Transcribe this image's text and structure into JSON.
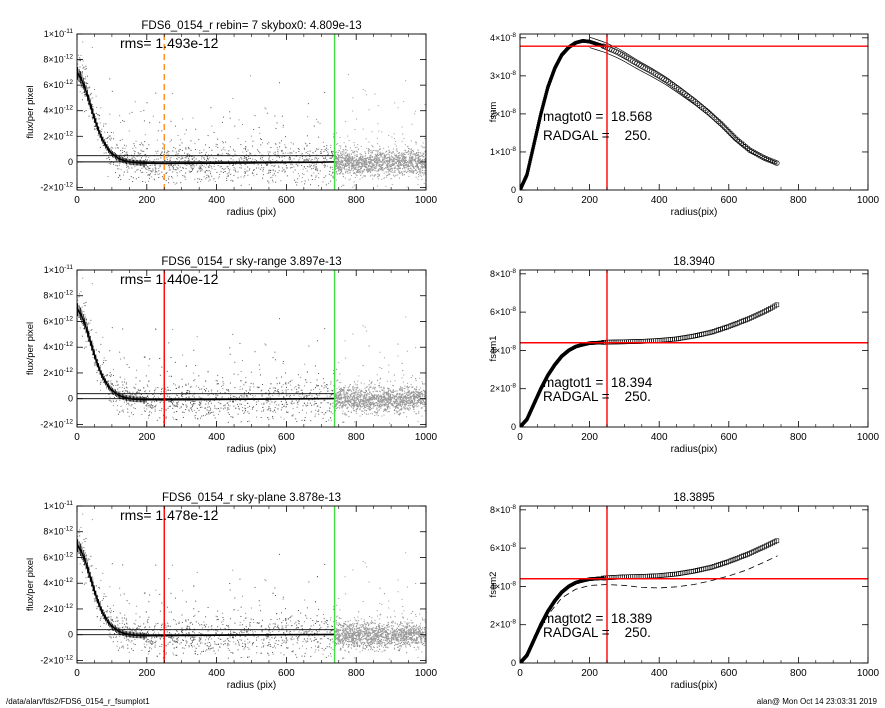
{
  "footer": {
    "left": "/data/alan/fds2/FDS6_0154_r_fsumplot1",
    "right": "alan@  Mon Oct 14 23:03:31 2019"
  },
  "colors": {
    "red": "#ff0000",
    "green": "#44dd44",
    "orange": "#ff8c1a",
    "scatter_grey": "#999999",
    "profile": "#000000"
  },
  "chart_data": [
    {
      "panel": "profile-1",
      "type": "scatter",
      "title": "FDS6_0154_r rebin= 7    skybox0:  4.809e-13",
      "annotation": "rms= 1.493e-12",
      "xlabel": "radius (pix)",
      "ylabel": "flux/per pixel",
      "xlim": [
        0,
        1000
      ],
      "ylim": [
        -2.2e-12,
        1e-11
      ],
      "xticks": [
        "0",
        "200",
        "400",
        "600",
        "800",
        "1000"
      ],
      "yticks": [
        {
          "value": -2e-12,
          "label": "-2×10",
          "exp": "-12"
        },
        {
          "value": 0,
          "label": "0",
          "exp": ""
        },
        {
          "value": 2e-12,
          "label": "2×10",
          "exp": "-12"
        },
        {
          "value": 4e-12,
          "label": "4×10",
          "exp": "-12"
        },
        {
          "value": 6e-12,
          "label": "6×10",
          "exp": "-12"
        },
        {
          "value": 8e-12,
          "label": "8×10",
          "exp": "-12"
        },
        {
          "value": 1e-11,
          "label": "1×10",
          "exp": "-11"
        }
      ],
      "vlines": [
        {
          "x": 250,
          "color": "orange",
          "dashed": true
        },
        {
          "x": 738,
          "color": "green",
          "dashed": false
        }
      ],
      "hlines": [
        4.809e-13,
        0
      ],
      "profile": {
        "x": [
          0,
          10,
          20,
          30,
          40,
          50,
          60,
          70,
          80,
          90,
          100,
          120,
          140,
          160,
          180,
          200,
          250,
          300,
          400,
          500,
          600,
          700,
          738
        ],
        "y": [
          7e-12,
          6.6e-12,
          6e-12,
          5.2e-12,
          4.3e-12,
          3.4e-12,
          2.6e-12,
          1.9e-12,
          1.4e-12,
          9.5e-13,
          6.5e-13,
          2.5e-13,
          6e-14,
          -4e-14,
          -8e-14,
          -1e-13,
          -1.2e-13,
          -1.1e-13,
          -1e-13,
          -8e-14,
          -5e-14,
          -3e-14,
          0
        ]
      }
    },
    {
      "panel": "fsum-1",
      "type": "line",
      "title": "",
      "xlabel": "radius(pix)",
      "ylabel": "fsum",
      "xlim": [
        0,
        1000
      ],
      "ylim": [
        0,
        4.1e-08
      ],
      "xticks": [
        "0",
        "200",
        "400",
        "600",
        "800",
        "1000"
      ],
      "yticks": [
        {
          "value": 0,
          "label": "0",
          "exp": ""
        },
        {
          "value": 1e-08,
          "label": "1×10",
          "exp": "-8"
        },
        {
          "value": 2e-08,
          "label": "2×10",
          "exp": "-8"
        },
        {
          "value": 3e-08,
          "label": "3×10",
          "exp": "-8"
        },
        {
          "value": 4e-08,
          "label": "4×10",
          "exp": "-8"
        }
      ],
      "annotations": [
        "magtot0 =  18.568",
        "RADGAL =    250."
      ],
      "vline_x": 250,
      "hline_y": 3.78e-08,
      "curve": {
        "x": [
          0,
          20,
          40,
          60,
          80,
          100,
          120,
          140,
          160,
          180,
          200,
          220,
          240,
          260,
          280,
          300,
          340,
          380,
          420,
          460,
          500,
          540,
          580,
          620,
          660,
          700,
          740
        ],
        "y": [
          0,
          4e-09,
          1.2e-08,
          2e-08,
          2.7e-08,
          3.2e-08,
          3.55e-08,
          3.75e-08,
          3.87e-08,
          3.92e-08,
          3.9e-08,
          3.84e-08,
          3.78e-08,
          3.7e-08,
          3.62e-08,
          3.52e-08,
          3.3e-08,
          3.1e-08,
          2.88e-08,
          2.62e-08,
          2.35e-08,
          2.05e-08,
          1.72e-08,
          1.35e-08,
          1.05e-08,
          8.5e-09,
          7e-09
        ]
      }
    },
    {
      "panel": "profile-2",
      "type": "scatter",
      "title": "FDS6_0154_r sky-range  3.897e-13",
      "annotation": "rms= 1.440e-12",
      "xlabel": "radius (pix)",
      "ylabel": "flux/per pixel",
      "xlim": [
        0,
        1000
      ],
      "ylim": [
        -2.2e-12,
        1e-11
      ],
      "xticks": [
        "0",
        "200",
        "400",
        "600",
        "800",
        "1000"
      ],
      "yticks": [
        {
          "value": -2e-12,
          "label": "-2×10",
          "exp": "-12"
        },
        {
          "value": 0,
          "label": "0",
          "exp": ""
        },
        {
          "value": 2e-12,
          "label": "2×10",
          "exp": "-12"
        },
        {
          "value": 4e-12,
          "label": "4×10",
          "exp": "-12"
        },
        {
          "value": 6e-12,
          "label": "6×10",
          "exp": "-12"
        },
        {
          "value": 8e-12,
          "label": "8×10",
          "exp": "-12"
        },
        {
          "value": 1e-11,
          "label": "1×10",
          "exp": "-11"
        }
      ],
      "vlines": [
        {
          "x": 250,
          "color": "red",
          "dashed": false
        },
        {
          "x": 738,
          "color": "green",
          "dashed": false
        }
      ],
      "hlines": [
        3.897e-13,
        0
      ],
      "profile": {
        "x": [
          0,
          10,
          20,
          30,
          40,
          50,
          60,
          70,
          80,
          90,
          100,
          120,
          140,
          160,
          180,
          200,
          250,
          300,
          400,
          500,
          600,
          700,
          738
        ],
        "y": [
          7e-12,
          6.6e-12,
          6e-12,
          5.2e-12,
          4.3e-12,
          3.4e-12,
          2.6e-12,
          1.9e-12,
          1.4e-12,
          9.5e-13,
          6.5e-13,
          2.5e-13,
          6e-14,
          -3e-14,
          -6e-14,
          -8e-14,
          -9e-14,
          -8e-14,
          -6e-14,
          -4e-14,
          -2e-14,
          0,
          1e-14
        ]
      }
    },
    {
      "panel": "fsum-2",
      "type": "line",
      "title": "18.3940",
      "xlabel": "radius(pix)",
      "ylabel": "fsum1",
      "xlim": [
        0,
        1000
      ],
      "ylim": [
        0,
        8.2e-08
      ],
      "xticks": [
        "0",
        "200",
        "400",
        "600",
        "800",
        "1000"
      ],
      "yticks": [
        {
          "value": 0,
          "label": "0",
          "exp": ""
        },
        {
          "value": 2e-08,
          "label": "2×10",
          "exp": "-8"
        },
        {
          "value": 4e-08,
          "label": "4×10",
          "exp": "-8"
        },
        {
          "value": 6e-08,
          "label": "6×10",
          "exp": "-8"
        },
        {
          "value": 8e-08,
          "label": "8×10",
          "exp": "-8"
        }
      ],
      "annotations": [
        "magtot1 =  18.394",
        "RADGAL =    250."
      ],
      "vline_x": 250,
      "hline_y": 4.4e-08,
      "curve": {
        "x": [
          0,
          20,
          40,
          60,
          80,
          100,
          120,
          140,
          160,
          180,
          200,
          250,
          300,
          350,
          400,
          450,
          500,
          550,
          600,
          650,
          700,
          740
        ],
        "y": [
          0,
          4e-09,
          1.2e-08,
          2e-08,
          2.7e-08,
          3.25e-08,
          3.7e-08,
          4e-08,
          4.2e-08,
          4.3e-08,
          4.38e-08,
          4.43e-08,
          4.45e-08,
          4.47e-08,
          4.52e-08,
          4.6e-08,
          4.75e-08,
          4.95e-08,
          5.25e-08,
          5.6e-08,
          6e-08,
          6.4e-08
        ]
      }
    },
    {
      "panel": "profile-3",
      "type": "scatter",
      "title": "FDS6_0154_r sky-plane  3.878e-13",
      "annotation": "rms= 1.478e-12",
      "xlabel": "radius (pix)",
      "ylabel": "flux/per pixel",
      "xlim": [
        0,
        1000
      ],
      "ylim": [
        -2.2e-12,
        1e-11
      ],
      "xticks": [
        "0",
        "200",
        "400",
        "600",
        "800",
        "1000"
      ],
      "yticks": [
        {
          "value": -2e-12,
          "label": "-2×10",
          "exp": "-12"
        },
        {
          "value": 0,
          "label": "0",
          "exp": ""
        },
        {
          "value": 2e-12,
          "label": "2×10",
          "exp": "-12"
        },
        {
          "value": 4e-12,
          "label": "4×10",
          "exp": "-12"
        },
        {
          "value": 6e-12,
          "label": "6×10",
          "exp": "-12"
        },
        {
          "value": 8e-12,
          "label": "8×10",
          "exp": "-12"
        },
        {
          "value": 1e-11,
          "label": "1×10",
          "exp": "-11"
        }
      ],
      "vlines": [
        {
          "x": 250,
          "color": "red",
          "dashed": false
        },
        {
          "x": 738,
          "color": "green",
          "dashed": false
        }
      ],
      "hlines": [
        3.878e-13,
        0
      ],
      "profile": {
        "x": [
          0,
          10,
          20,
          30,
          40,
          50,
          60,
          70,
          80,
          90,
          100,
          120,
          140,
          160,
          180,
          200,
          250,
          300,
          400,
          500,
          600,
          700,
          738
        ],
        "y": [
          7e-12,
          6.6e-12,
          6e-12,
          5.2e-12,
          4.3e-12,
          3.4e-12,
          2.6e-12,
          1.9e-12,
          1.4e-12,
          9.5e-13,
          6.5e-13,
          2.5e-13,
          6e-14,
          -3e-14,
          -6e-14,
          -8e-14,
          -8e-14,
          -6e-14,
          -4e-14,
          -2e-14,
          0,
          1e-14,
          2e-14
        ]
      }
    },
    {
      "panel": "fsum-3",
      "type": "line",
      "title": "18.3895",
      "xlabel": "radius(pix)",
      "ylabel": "fsum2",
      "xlim": [
        0,
        1000
      ],
      "ylim": [
        0,
        8.2e-08
      ],
      "xticks": [
        "0",
        "200",
        "400",
        "600",
        "800",
        "1000"
      ],
      "yticks": [
        {
          "value": 0,
          "label": "0",
          "exp": ""
        },
        {
          "value": 2e-08,
          "label": "2×10",
          "exp": "-8"
        },
        {
          "value": 4e-08,
          "label": "4×10",
          "exp": "-8"
        },
        {
          "value": 6e-08,
          "label": "6×10",
          "exp": "-8"
        },
        {
          "value": 8e-08,
          "label": "8×10",
          "exp": "-8"
        }
      ],
      "annotations": [
        "magtot2 =  18.389",
        "RADGAL =    250."
      ],
      "vline_x": 250,
      "hline_y": 4.4e-08,
      "curve": {
        "x": [
          0,
          20,
          40,
          60,
          80,
          100,
          120,
          140,
          160,
          180,
          200,
          250,
          300,
          350,
          400,
          450,
          500,
          550,
          600,
          650,
          700,
          740
        ],
        "y": [
          0,
          4e-09,
          1.2e-08,
          2e-08,
          2.7e-08,
          3.25e-08,
          3.7e-08,
          4e-08,
          4.2e-08,
          4.3e-08,
          4.38e-08,
          4.45e-08,
          4.5e-08,
          4.52e-08,
          4.56e-08,
          4.65e-08,
          4.8e-08,
          5e-08,
          5.3e-08,
          5.65e-08,
          6.05e-08,
          6.4e-08
        ]
      },
      "dashed_curve": {
        "x": [
          0,
          40,
          80,
          120,
          160,
          200,
          250,
          300,
          350,
          400,
          450,
          500,
          550,
          600,
          650,
          700,
          740
        ],
        "y": [
          0,
          1.1e-08,
          2.5e-08,
          3.4e-08,
          3.85e-08,
          4.05e-08,
          4.1e-08,
          4.05e-08,
          3.95e-08,
          3.92e-08,
          3.98e-08,
          4.1e-08,
          4.3e-08,
          4.55e-08,
          4.85e-08,
          5.25e-08,
          5.6e-08
        ]
      }
    }
  ]
}
